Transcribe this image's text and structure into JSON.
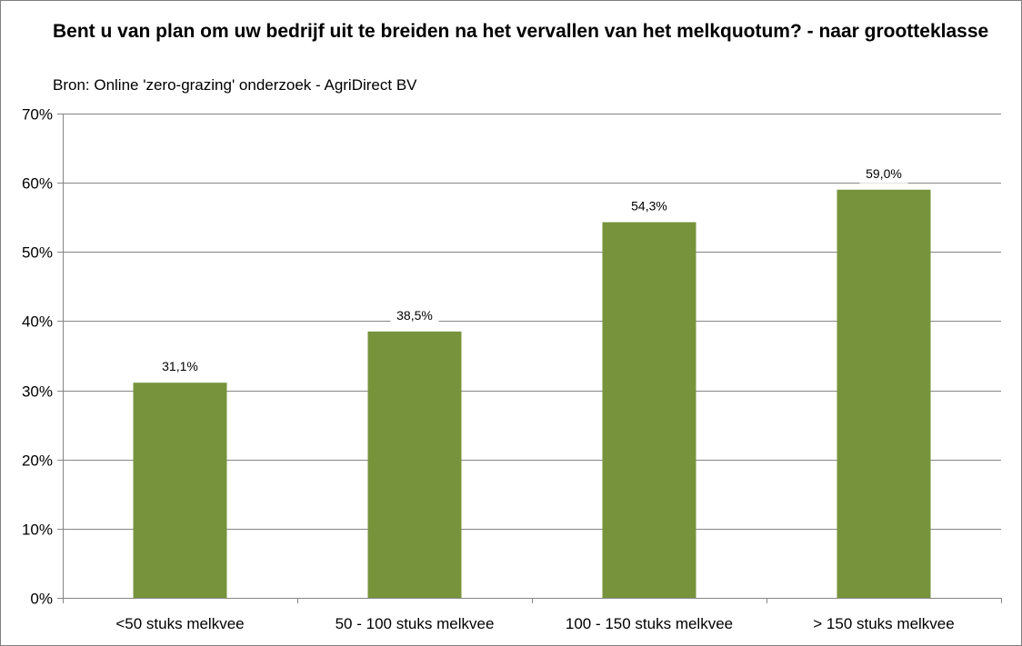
{
  "chart_data": {
    "type": "bar",
    "title": "Bent u van plan om uw bedrijf uit te breiden na het vervallen van het melkquotum? - naar grootteklasse",
    "subtitle": "Bron: Online 'zero-grazing' onderzoek - AgriDirect BV",
    "xlabel": "",
    "ylabel": "",
    "categories": [
      "<50 stuks melkvee",
      "50 - 100 stuks melkvee",
      "100 - 150 stuks melkvee",
      "> 150 stuks melkvee"
    ],
    "values": [
      31.1,
      38.5,
      54.3,
      59.0
    ],
    "data_labels": [
      "31,1%",
      "38,5%",
      "54,3%",
      "59,0%"
    ],
    "y_ticks": [
      0,
      10,
      20,
      30,
      40,
      50,
      60,
      70
    ],
    "y_tick_labels": [
      "0%",
      "10%",
      "20%",
      "30%",
      "40%",
      "50%",
      "60%",
      "70%"
    ],
    "ylim": [
      0,
      70
    ],
    "grid": true,
    "legend": "none",
    "bar_color": "#77933c",
    "grid_color": "#868686"
  }
}
